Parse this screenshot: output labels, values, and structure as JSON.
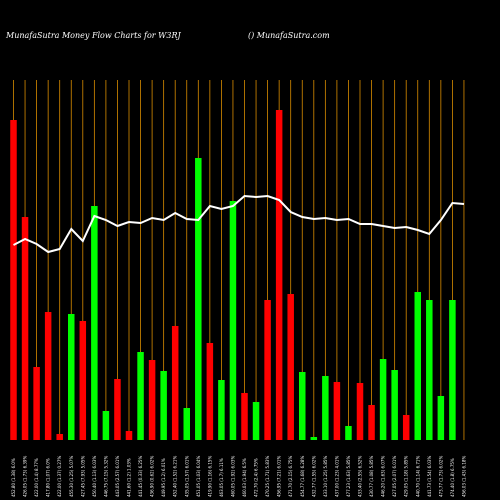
{
  "chart_data": {
    "type": "bar",
    "title": "MunafaSutra  Money Flow  Charts for W3RJ",
    "subtitle": "() MunafaSutra.com",
    "background": "#000000",
    "colors": {
      "up": "#00ff00",
      "down": "#ff0000",
      "line": "#ffffff",
      "grid": "#d98c00"
    },
    "categories": [
      "452.80 (1.38) 6.0%",
      "426.05 (1.73) 6.39%",
      "422.00 (1.4) 8.77%",
      "417.80 (1.07) 6.0%",
      "422.00 (1.37) 0.27%",
      "455.30 (1.25) 5.07%",
      "427.45 (7.93) 5.05%",
      "450.40 (1.13) 6.03%",
      "446.75 (7.15) 5.32%",
      "443.05 (2.57) 6.01%",
      "441.60 (1.2) 1.03%",
      "441.45 (0.33) 6.25%",
      "436.90 (0.62) 6.02%",
      "449.95 (1.2) 6.01%",
      "452.40 (1.52) 6.21%",
      "435.05 (1.57) 6.01%",
      "451.05 (1.03) 6.04%",
      "419.90 (1.16) 6.15%",
      "463.05 (1.7) 6.11%",
      "460.05 (1.92) 6.03%",
      "460.03 (1.94) 6.5%",
      "472.70 (2.4) 6.75%",
      "470.25 (1.71) 5.83%",
      "456.95 (7.21) 6.01%",
      "471.70 (2.15) 6.75%",
      "454.77 (1.68) 6.28%",
      "432.77 (1.55) 6.02%",
      "433.10 (1.25) 5.85%",
      "437.00 (1.23) 4.01%",
      "477.23 (1.63) 5.85%",
      "433.40 (2.55) 6.52%",
      "430.77 (1.08) 5.85%",
      "446.20 (1.63) 6.07%",
      "427.05 (2.07) 6.01%",
      "429.05 (1.18) 5.85%",
      "440.70 (1.14) 6.71%",
      "441.73 (1.54) 6.03%",
      "473.77 (1.73) 6.02%",
      "474.40 (1.8) 6.75%",
      "456.03 (1.43) 6.18%"
    ],
    "values": [
      320,
      223,
      73,
      128,
      6,
      126,
      119,
      234,
      29,
      61,
      9,
      88,
      80,
      69,
      114,
      32,
      282,
      97,
      60,
      239,
      47,
      38,
      140,
      330,
      146,
      68,
      3,
      64,
      58,
      14,
      57,
      35,
      81,
      70,
      25,
      148,
      140,
      44,
      140,
      0
    ],
    "directions": [
      "down",
      "down",
      "down",
      "down",
      "down",
      "up",
      "down",
      "up",
      "up",
      "down",
      "down",
      "up",
      "down",
      "up",
      "down",
      "up",
      "up",
      "down",
      "up",
      "up",
      "down",
      "up",
      "down",
      "down",
      "down",
      "up",
      "up",
      "up",
      "down",
      "up",
      "down",
      "down",
      "up",
      "up",
      "down",
      "up",
      "up",
      "up",
      "up",
      "up"
    ],
    "line_values": [
      195,
      201,
      196,
      188,
      191,
      211,
      199,
      224,
      220,
      214,
      218,
      217,
      222,
      220,
      227,
      221,
      220,
      234,
      231,
      234,
      244,
      243,
      244,
      240,
      228,
      223,
      221,
      222,
      220,
      221,
      216,
      216,
      214,
      212,
      213,
      210,
      206,
      220,
      237,
      236
    ],
    "ylim": [
      0,
      360
    ]
  }
}
